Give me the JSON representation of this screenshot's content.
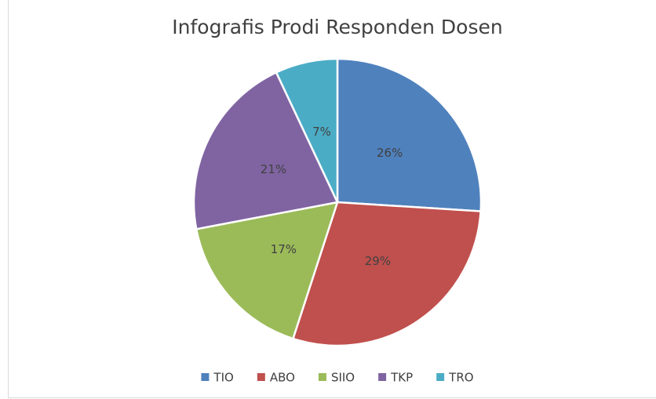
{
  "chart_data": {
    "type": "pie",
    "title": "Infografis Prodi Responden Dosen",
    "categories": [
      "TIO",
      "ABO",
      "SIIO",
      "TKP",
      "TRO"
    ],
    "values": [
      26,
      29,
      17,
      21,
      7
    ],
    "value_labels": [
      "26%",
      "29%",
      "17%",
      "21%",
      "7%"
    ],
    "colors": [
      "#4f81bd",
      "#c0504d",
      "#9bbb59",
      "#8064a2",
      "#4bacc6"
    ],
    "legend": "bottom"
  }
}
